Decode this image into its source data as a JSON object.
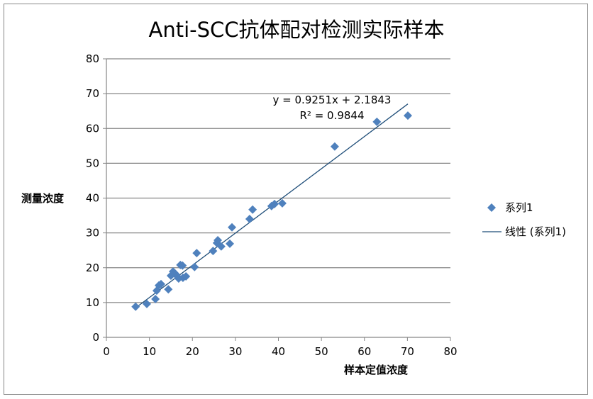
{
  "chart_data": {
    "type": "scatter",
    "title": "Anti-SCC抗体配对检测实际样本",
    "xlabel": "样本定值浓度",
    "ylabel": "测量浓度",
    "xlim": [
      0,
      80
    ],
    "ylim": [
      0,
      80
    ],
    "xticks": [
      "0",
      "10",
      "20",
      "30",
      "40",
      "50",
      "60",
      "70",
      "80"
    ],
    "yticks": [
      "0",
      "10",
      "20",
      "30",
      "40",
      "50",
      "60",
      "70",
      "80"
    ],
    "grid": "horizontal",
    "legend_position": "right",
    "series": [
      {
        "name": "系列1",
        "marker": "diamond",
        "color": "#4F81BD",
        "points": [
          [
            6.8,
            8.8
          ],
          [
            9.4,
            9.6
          ],
          [
            11.4,
            11.0
          ],
          [
            11.7,
            13.4
          ],
          [
            12.2,
            14.9
          ],
          [
            12.7,
            15.3
          ],
          [
            14.4,
            13.8
          ],
          [
            15.0,
            17.7
          ],
          [
            15.5,
            18.9
          ],
          [
            16.0,
            18.3
          ],
          [
            16.5,
            17.5
          ],
          [
            16.8,
            16.9
          ],
          [
            17.2,
            20.8
          ],
          [
            17.7,
            20.6
          ],
          [
            17.8,
            17.1
          ],
          [
            18.5,
            17.5
          ],
          [
            20.5,
            20.2
          ],
          [
            21.0,
            24.2
          ],
          [
            24.8,
            24.8
          ],
          [
            25.7,
            27.1
          ],
          [
            25.9,
            27.9
          ],
          [
            26.7,
            26.1
          ],
          [
            28.7,
            26.9
          ],
          [
            29.2,
            31.6
          ],
          [
            33.3,
            34.0
          ],
          [
            34.0,
            36.7
          ],
          [
            38.4,
            37.7
          ],
          [
            39.1,
            38.3
          ],
          [
            40.9,
            38.5
          ],
          [
            53.1,
            54.8
          ],
          [
            62.9,
            61.9
          ],
          [
            70.1,
            63.7
          ]
        ]
      }
    ],
    "trendline": {
      "name": "线性 (系列1)",
      "slope": 0.9251,
      "intercept": 2.1843,
      "x_range": [
        6.8,
        70.1
      ],
      "color": "#1F4E79",
      "equation": "y = 0.9251x + 2.1843",
      "r2": "R² = 0.9844"
    }
  }
}
